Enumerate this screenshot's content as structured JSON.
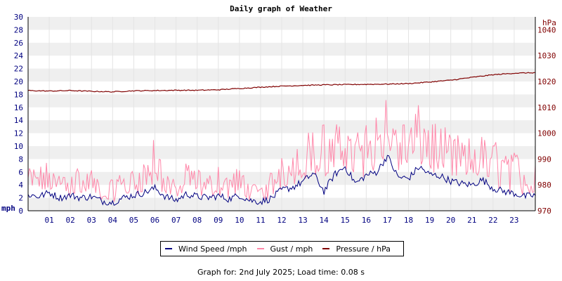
{
  "title": "Daily graph of Weather",
  "footer": "Graph for: 2nd July 2025; Load time: 0.08 s",
  "legend": [
    {
      "label": "Wind Speed /mph",
      "color": "#000080"
    },
    {
      "label": "Gust / mph",
      "color": "#ff88aa"
    },
    {
      "label": "Pressure / hPa",
      "color": "#800000"
    }
  ],
  "chart_data": {
    "type": "line",
    "xlabel": "",
    "left_axis": {
      "label": "mph",
      "ylim": [
        0,
        30
      ],
      "ticks": [
        "0",
        "2",
        "4",
        "6",
        "8",
        "10",
        "12",
        "14",
        "16",
        "18",
        "20",
        "22",
        "24",
        "26",
        "28",
        "30"
      ],
      "color": "#000080"
    },
    "right_axis": {
      "label": "hPa",
      "ylim": [
        970,
        1045
      ],
      "ticks": [
        "970",
        "980",
        "990",
        "1000",
        "1010",
        "1020",
        "1030",
        "1040"
      ],
      "color": "#800000"
    },
    "x_ticks": [
      "01",
      "02",
      "03",
      "04",
      "05",
      "06",
      "07",
      "08",
      "09",
      "10",
      "11",
      "12",
      "13",
      "14",
      "15",
      "16",
      "17",
      "18",
      "19",
      "20",
      "21",
      "22",
      "23"
    ],
    "xlim": [
      0,
      24
    ],
    "grid": "horizontal bands",
    "series": [
      {
        "name": "Wind Speed /mph",
        "axis": "left",
        "color": "#000080",
        "x": [
          0,
          0.5,
          1,
          1.5,
          2,
          2.5,
          3,
          3.5,
          4,
          4.5,
          5,
          5.5,
          6,
          6.5,
          7,
          7.5,
          8,
          8.5,
          9,
          9.5,
          10,
          10.5,
          11,
          11.5,
          12,
          12.5,
          13,
          13.5,
          14,
          14.5,
          15,
          15.5,
          16,
          16.5,
          17,
          17.5,
          18,
          18.5,
          19,
          19.5,
          20,
          20.5,
          21,
          21.5,
          22,
          22.5,
          23,
          23.5,
          24
        ],
        "values": [
          2.5,
          2.2,
          2.8,
          2.0,
          2.4,
          2.0,
          2.2,
          1.5,
          1.3,
          2.0,
          2.4,
          2.8,
          3.5,
          2.2,
          1.6,
          2.6,
          2.2,
          2.0,
          2.3,
          1.8,
          2.4,
          1.6,
          1.4,
          1.9,
          3.2,
          3.6,
          4.5,
          5.8,
          3.0,
          5.6,
          6.8,
          4.2,
          5.5,
          6.0,
          8.5,
          5.2,
          5.0,
          6.8,
          5.6,
          5.4,
          4.6,
          4.2,
          4.0,
          4.8,
          3.5,
          3.0,
          2.7,
          2.2,
          2.4
        ]
      },
      {
        "name": "Gust / mph",
        "axis": "left",
        "color": "#ff88aa",
        "x": [
          0,
          0.5,
          1,
          1.5,
          2,
          2.5,
          3,
          3.5,
          4,
          4.5,
          5,
          5.5,
          6,
          6.5,
          7,
          7.5,
          8,
          8.5,
          9,
          9.5,
          10,
          10.5,
          11,
          11.5,
          12,
          12.5,
          13,
          13.5,
          14,
          14.5,
          15,
          15.5,
          16,
          16.5,
          17,
          17.5,
          18,
          18.5,
          19,
          19.5,
          20,
          20.5,
          21,
          21.5,
          22,
          22.5,
          23,
          23.5,
          24
        ],
        "values": [
          6.5,
          7.0,
          8.0,
          5.5,
          8.5,
          6.0,
          7.0,
          3.5,
          5.0,
          6.0,
          6.5,
          8.0,
          11.5,
          6.5,
          4.5,
          7.5,
          6.5,
          5.5,
          7.0,
          5.5,
          7.0,
          4.5,
          4.0,
          6.0,
          9.5,
          10.0,
          11.5,
          13.0,
          14.0,
          13.0,
          15.5,
          12.0,
          14.0,
          15.5,
          18.0,
          14.0,
          14.0,
          16.5,
          15.0,
          13.5,
          12.5,
          11.5,
          11.5,
          12.0,
          11.0,
          10.0,
          9.5,
          7.5,
          8.0
        ]
      },
      {
        "name": "Pressure / hPa",
        "axis": "right",
        "color": "#800000",
        "x": [
          0,
          1,
          2,
          3,
          4,
          5,
          6,
          7,
          8,
          9,
          10,
          11,
          12,
          13,
          14,
          15,
          16,
          17,
          18,
          19,
          20,
          21,
          22,
          23,
          24
        ],
        "values": [
          1016.5,
          1016.3,
          1016.5,
          1016.2,
          1016.0,
          1016.4,
          1016.5,
          1016.6,
          1016.6,
          1016.8,
          1017.3,
          1017.8,
          1018.2,
          1018.5,
          1018.7,
          1018.8,
          1018.9,
          1019.0,
          1019.2,
          1019.8,
          1020.5,
          1021.6,
          1022.6,
          1023.2,
          1023.4
        ]
      }
    ]
  }
}
